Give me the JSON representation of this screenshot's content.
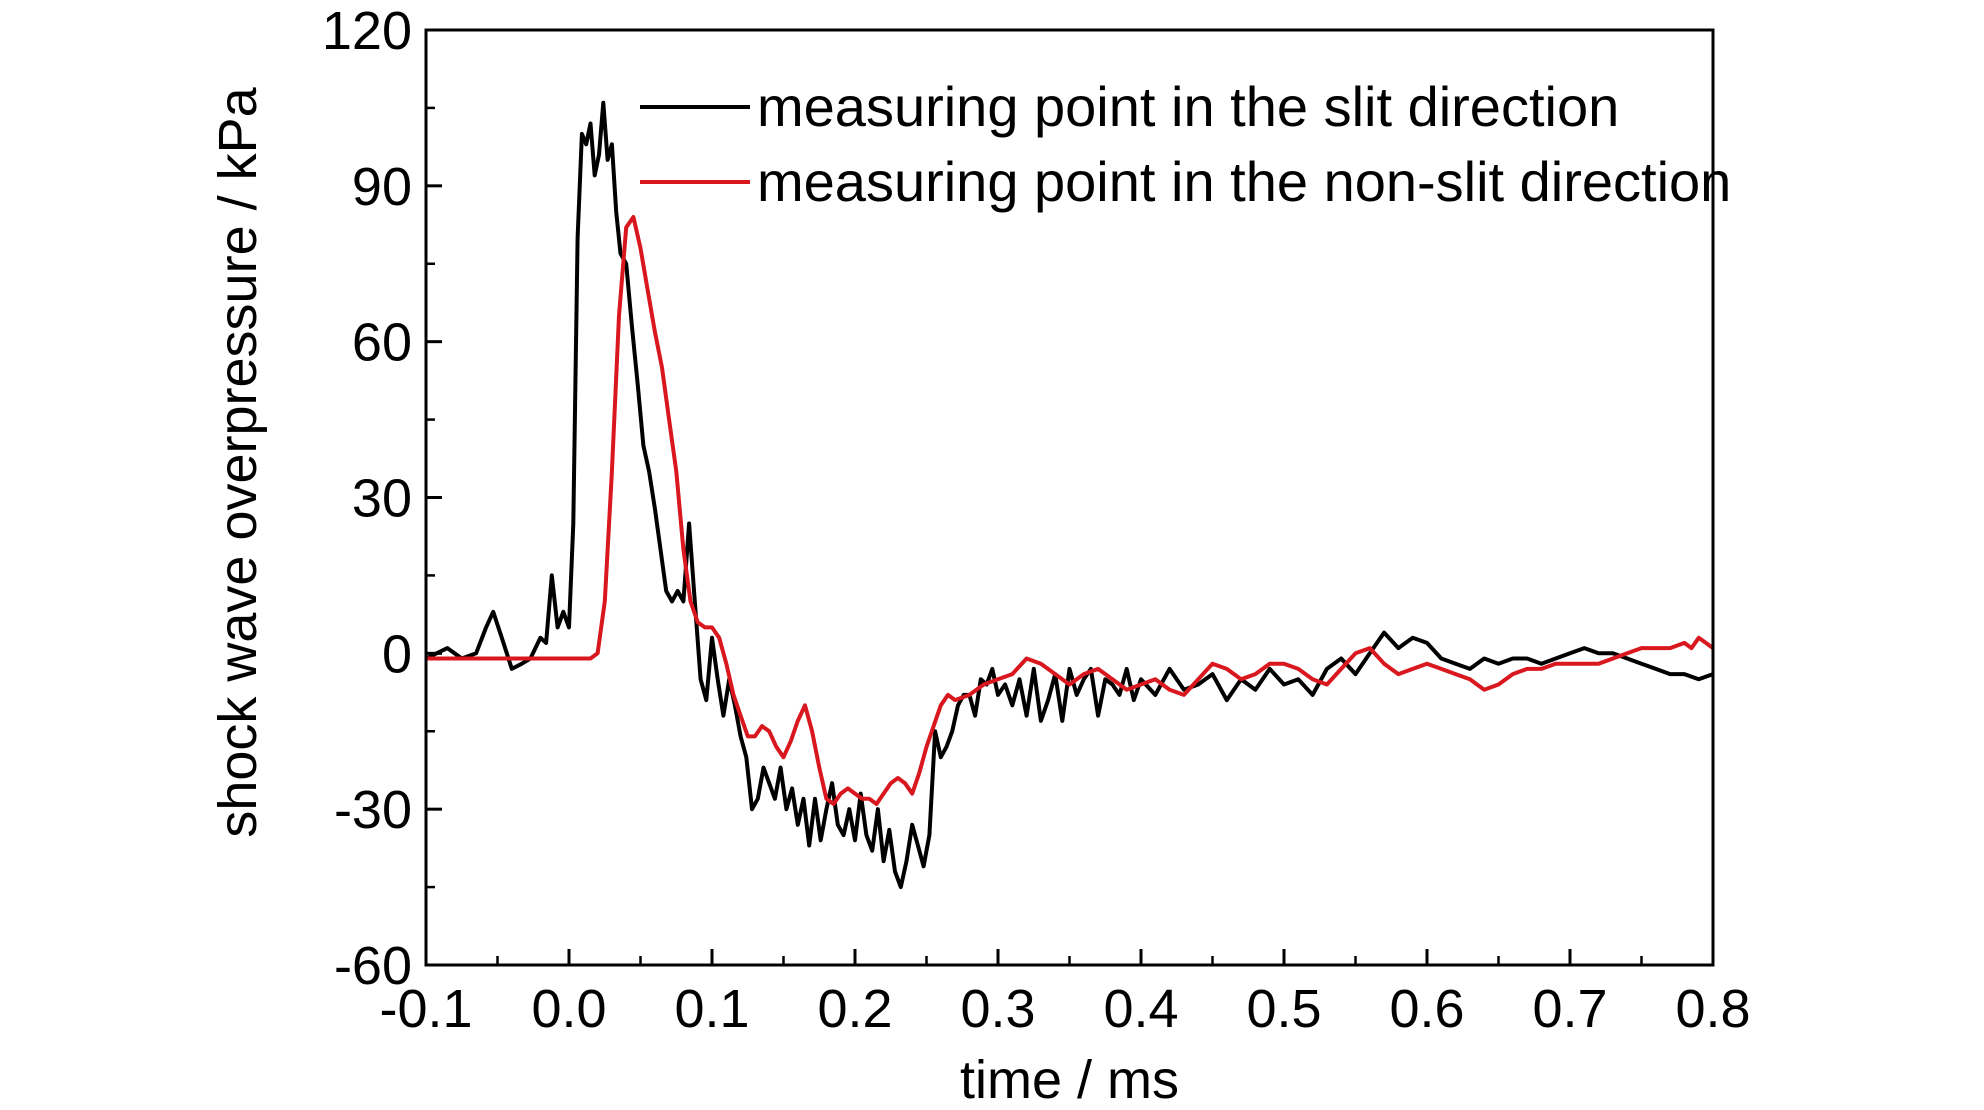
{
  "chart_data": {
    "type": "line",
    "title": "",
    "xlabel": "time / ms",
    "ylabel": "shock wave overpressure / kPa",
    "xlim": [
      -0.1,
      0.8
    ],
    "ylim": [
      -60,
      120
    ],
    "x_ticks": [
      -0.1,
      0.0,
      0.1,
      0.2,
      0.3,
      0.4,
      0.5,
      0.6,
      0.7,
      0.8
    ],
    "x_tick_labels": [
      "-0.1",
      "0.0",
      "0.1",
      "0.2",
      "0.3",
      "0.4",
      "0.5",
      "0.6",
      "0.7",
      "0.8"
    ],
    "y_ticks": [
      -60,
      -30,
      0,
      30,
      60,
      90,
      120
    ],
    "y_tick_labels": [
      "-60",
      "-30",
      "0",
      "30",
      "60",
      "90",
      "120"
    ],
    "grid": false,
    "legend_position": "top-right",
    "series": [
      {
        "name": "measuring point in the slit direction",
        "color": "#000000",
        "points": [
          [
            -0.1,
            -1
          ],
          [
            -0.085,
            1
          ],
          [
            -0.075,
            -1
          ],
          [
            -0.065,
            0
          ],
          [
            -0.058,
            5
          ],
          [
            -0.053,
            8
          ],
          [
            -0.047,
            3
          ],
          [
            -0.04,
            -3
          ],
          [
            -0.033,
            -2
          ],
          [
            -0.027,
            -1
          ],
          [
            -0.02,
            3
          ],
          [
            -0.016,
            2
          ],
          [
            -0.012,
            15
          ],
          [
            -0.008,
            5
          ],
          [
            -0.004,
            8
          ],
          [
            0.0,
            5
          ],
          [
            0.003,
            25
          ],
          [
            0.006,
            80
          ],
          [
            0.009,
            100
          ],
          [
            0.012,
            98
          ],
          [
            0.015,
            102
          ],
          [
            0.018,
            92
          ],
          [
            0.021,
            96
          ],
          [
            0.024,
            106
          ],
          [
            0.027,
            95
          ],
          [
            0.03,
            98
          ],
          [
            0.033,
            85
          ],
          [
            0.036,
            77
          ],
          [
            0.04,
            75
          ],
          [
            0.044,
            63
          ],
          [
            0.048,
            52
          ],
          [
            0.052,
            40
          ],
          [
            0.056,
            35
          ],
          [
            0.06,
            28
          ],
          [
            0.064,
            20
          ],
          [
            0.068,
            12
          ],
          [
            0.072,
            10
          ],
          [
            0.076,
            12
          ],
          [
            0.08,
            10
          ],
          [
            0.084,
            25
          ],
          [
            0.088,
            10
          ],
          [
            0.092,
            -5
          ],
          [
            0.096,
            -9
          ],
          [
            0.1,
            3
          ],
          [
            0.104,
            -5
          ],
          [
            0.108,
            -12
          ],
          [
            0.112,
            -5
          ],
          [
            0.116,
            -10
          ],
          [
            0.12,
            -16
          ],
          [
            0.124,
            -20
          ],
          [
            0.128,
            -30
          ],
          [
            0.132,
            -28
          ],
          [
            0.136,
            -22
          ],
          [
            0.14,
            -25
          ],
          [
            0.144,
            -28
          ],
          [
            0.148,
            -22
          ],
          [
            0.152,
            -30
          ],
          [
            0.156,
            -26
          ],
          [
            0.16,
            -33
          ],
          [
            0.164,
            -28
          ],
          [
            0.168,
            -37
          ],
          [
            0.172,
            -28
          ],
          [
            0.176,
            -36
          ],
          [
            0.18,
            -30
          ],
          [
            0.184,
            -25
          ],
          [
            0.188,
            -33
          ],
          [
            0.192,
            -35
          ],
          [
            0.196,
            -30
          ],
          [
            0.2,
            -36
          ],
          [
            0.204,
            -27
          ],
          [
            0.208,
            -35
          ],
          [
            0.212,
            -38
          ],
          [
            0.216,
            -30
          ],
          [
            0.22,
            -40
          ],
          [
            0.224,
            -34
          ],
          [
            0.228,
            -42
          ],
          [
            0.232,
            -45
          ],
          [
            0.236,
            -40
          ],
          [
            0.24,
            -33
          ],
          [
            0.244,
            -37
          ],
          [
            0.248,
            -41
          ],
          [
            0.252,
            -35
          ],
          [
            0.256,
            -15
          ],
          [
            0.26,
            -20
          ],
          [
            0.264,
            -18
          ],
          [
            0.268,
            -15
          ],
          [
            0.272,
            -10
          ],
          [
            0.276,
            -8
          ],
          [
            0.28,
            -8
          ],
          [
            0.284,
            -12
          ],
          [
            0.288,
            -5
          ],
          [
            0.292,
            -6
          ],
          [
            0.296,
            -3
          ],
          [
            0.3,
            -8
          ],
          [
            0.305,
            -6
          ],
          [
            0.31,
            -10
          ],
          [
            0.315,
            -5
          ],
          [
            0.32,
            -12
          ],
          [
            0.325,
            -3
          ],
          [
            0.33,
            -13
          ],
          [
            0.335,
            -9
          ],
          [
            0.34,
            -4
          ],
          [
            0.345,
            -13
          ],
          [
            0.35,
            -3
          ],
          [
            0.355,
            -8
          ],
          [
            0.36,
            -5
          ],
          [
            0.365,
            -3
          ],
          [
            0.37,
            -12
          ],
          [
            0.375,
            -5
          ],
          [
            0.38,
            -6
          ],
          [
            0.385,
            -8
          ],
          [
            0.39,
            -3
          ],
          [
            0.395,
            -9
          ],
          [
            0.4,
            -5
          ],
          [
            0.41,
            -8
          ],
          [
            0.42,
            -3
          ],
          [
            0.43,
            -7
          ],
          [
            0.44,
            -6
          ],
          [
            0.45,
            -4
          ],
          [
            0.46,
            -9
          ],
          [
            0.47,
            -5
          ],
          [
            0.48,
            -7
          ],
          [
            0.49,
            -3
          ],
          [
            0.5,
            -6
          ],
          [
            0.51,
            -5
          ],
          [
            0.52,
            -8
          ],
          [
            0.53,
            -3
          ],
          [
            0.54,
            -1
          ],
          [
            0.55,
            -4
          ],
          [
            0.56,
            0
          ],
          [
            0.57,
            4
          ],
          [
            0.58,
            1
          ],
          [
            0.59,
            3
          ],
          [
            0.6,
            2
          ],
          [
            0.61,
            -1
          ],
          [
            0.62,
            -2
          ],
          [
            0.63,
            -3
          ],
          [
            0.64,
            -1
          ],
          [
            0.65,
            -2
          ],
          [
            0.66,
            -1
          ],
          [
            0.67,
            -1
          ],
          [
            0.68,
            -2
          ],
          [
            0.69,
            -1
          ],
          [
            0.7,
            0
          ],
          [
            0.71,
            1
          ],
          [
            0.72,
            0
          ],
          [
            0.73,
            0
          ],
          [
            0.74,
            -1
          ],
          [
            0.75,
            -2
          ],
          [
            0.76,
            -3
          ],
          [
            0.77,
            -4
          ],
          [
            0.78,
            -4
          ],
          [
            0.79,
            -5
          ],
          [
            0.8,
            -4
          ]
        ]
      },
      {
        "name": "measuring point in the non-slit direction",
        "color": "#d9171e",
        "points": [
          [
            -0.1,
            -1
          ],
          [
            -0.08,
            -1
          ],
          [
            -0.075,
            -1
          ],
          [
            -0.06,
            -1
          ],
          [
            -0.04,
            -1
          ],
          [
            -0.02,
            -1
          ],
          [
            0.0,
            -1
          ],
          [
            0.015,
            -1
          ],
          [
            0.02,
            0
          ],
          [
            0.025,
            10
          ],
          [
            0.03,
            35
          ],
          [
            0.035,
            65
          ],
          [
            0.04,
            82
          ],
          [
            0.045,
            84
          ],
          [
            0.05,
            78
          ],
          [
            0.055,
            70
          ],
          [
            0.06,
            62
          ],
          [
            0.065,
            55
          ],
          [
            0.07,
            45
          ],
          [
            0.075,
            35
          ],
          [
            0.08,
            20
          ],
          [
            0.085,
            10
          ],
          [
            0.09,
            6
          ],
          [
            0.095,
            5
          ],
          [
            0.1,
            5
          ],
          [
            0.105,
            3
          ],
          [
            0.11,
            -2
          ],
          [
            0.115,
            -8
          ],
          [
            0.12,
            -12
          ],
          [
            0.125,
            -16
          ],
          [
            0.13,
            -16
          ],
          [
            0.135,
            -14
          ],
          [
            0.14,
            -15
          ],
          [
            0.145,
            -18
          ],
          [
            0.15,
            -20
          ],
          [
            0.155,
            -17
          ],
          [
            0.16,
            -13
          ],
          [
            0.165,
            -10
          ],
          [
            0.17,
            -15
          ],
          [
            0.175,
            -22
          ],
          [
            0.18,
            -28
          ],
          [
            0.185,
            -29
          ],
          [
            0.19,
            -27
          ],
          [
            0.195,
            -26
          ],
          [
            0.2,
            -27
          ],
          [
            0.205,
            -28
          ],
          [
            0.21,
            -28
          ],
          [
            0.215,
            -29
          ],
          [
            0.22,
            -27
          ],
          [
            0.225,
            -25
          ],
          [
            0.23,
            -24
          ],
          [
            0.235,
            -25
          ],
          [
            0.24,
            -27
          ],
          [
            0.245,
            -23
          ],
          [
            0.25,
            -18
          ],
          [
            0.255,
            -14
          ],
          [
            0.26,
            -10
          ],
          [
            0.265,
            -8
          ],
          [
            0.27,
            -9
          ],
          [
            0.28,
            -8
          ],
          [
            0.29,
            -6
          ],
          [
            0.3,
            -5
          ],
          [
            0.31,
            -4
          ],
          [
            0.32,
            -1
          ],
          [
            0.33,
            -2
          ],
          [
            0.34,
            -4
          ],
          [
            0.35,
            -6
          ],
          [
            0.36,
            -4
          ],
          [
            0.37,
            -3
          ],
          [
            0.38,
            -5
          ],
          [
            0.39,
            -7
          ],
          [
            0.4,
            -6
          ],
          [
            0.41,
            -5
          ],
          [
            0.42,
            -7
          ],
          [
            0.43,
            -8
          ],
          [
            0.44,
            -5
          ],
          [
            0.45,
            -2
          ],
          [
            0.46,
            -3
          ],
          [
            0.47,
            -5
          ],
          [
            0.48,
            -4
          ],
          [
            0.49,
            -2
          ],
          [
            0.5,
            -2
          ],
          [
            0.51,
            -3
          ],
          [
            0.52,
            -5
          ],
          [
            0.53,
            -6
          ],
          [
            0.54,
            -3
          ],
          [
            0.55,
            0
          ],
          [
            0.56,
            1
          ],
          [
            0.57,
            -2
          ],
          [
            0.58,
            -4
          ],
          [
            0.59,
            -3
          ],
          [
            0.6,
            -2
          ],
          [
            0.61,
            -3
          ],
          [
            0.62,
            -4
          ],
          [
            0.63,
            -5
          ],
          [
            0.64,
            -7
          ],
          [
            0.65,
            -6
          ],
          [
            0.66,
            -4
          ],
          [
            0.67,
            -3
          ],
          [
            0.68,
            -3
          ],
          [
            0.69,
            -2
          ],
          [
            0.7,
            -2
          ],
          [
            0.71,
            -2
          ],
          [
            0.72,
            -2
          ],
          [
            0.73,
            -1
          ],
          [
            0.74,
            0
          ],
          [
            0.75,
            1
          ],
          [
            0.76,
            1
          ],
          [
            0.77,
            1
          ],
          [
            0.78,
            2
          ],
          [
            0.785,
            1
          ],
          [
            0.79,
            3
          ],
          [
            0.795,
            2
          ],
          [
            0.8,
            1
          ]
        ]
      }
    ]
  }
}
